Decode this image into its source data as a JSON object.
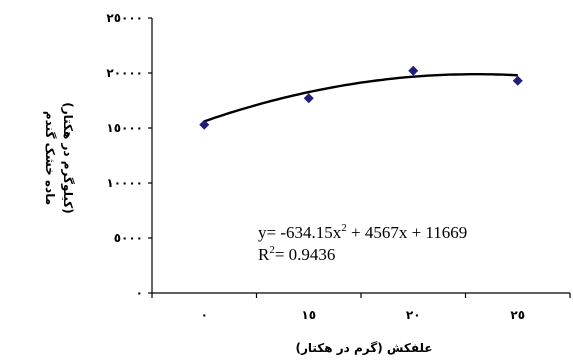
{
  "chart_data": {
    "type": "scatter",
    "x_tick_labels": [
      "٠",
      "١٥",
      "٢٠",
      "٢٥"
    ],
    "y_tick_labels": [
      "٠",
      "٥٠٠٠",
      "١٠٠٠٠",
      "١٥٠٠٠",
      "٢٠٠٠٠",
      "٢٥٠٠٠"
    ],
    "ylim": [
      0,
      25000
    ],
    "xlabel": "علفکش (گرم در هکتار)",
    "ylabel_line1": "ماده خشک گندم",
    "ylabel_line2": "(کیلوگرم در هکتار)",
    "points": [
      {
        "x": 0,
        "y": 15300
      },
      {
        "x": 15,
        "y": 17700
      },
      {
        "x": 20,
        "y": 20200
      },
      {
        "x": 25,
        "y": 19300
      }
    ],
    "trendline": {
      "a": -634.15,
      "b": 4567,
      "c": 11669
    },
    "equation_line1_main": "y= -634.15x",
    "equation_sup": "2",
    "equation_line1_rest": " + 4567x + 11669",
    "r2_prefix": "R",
    "r2_sup": "2",
    "r2_rest": "= 0.9436",
    "marker_color": "#1f1f7a",
    "line_color": "#000000",
    "grid": false
  }
}
